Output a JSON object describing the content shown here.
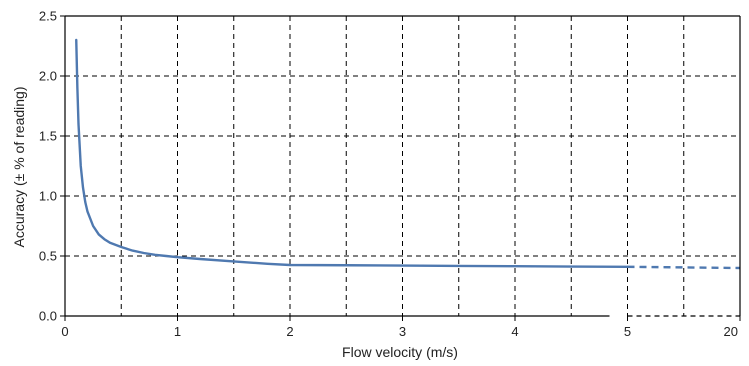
{
  "chart_data": {
    "type": "line",
    "title": "",
    "xlabel": "Flow velocity (m/s)",
    "ylabel": "Accuracy (± % of reading)",
    "ylim": [
      0,
      2.5
    ],
    "x_ticks": [
      "0",
      "1",
      "2",
      "3",
      "4",
      "5",
      "20"
    ],
    "y_ticks": [
      "0.0",
      "0.5",
      "1.0",
      "1.5",
      "2.0",
      "2.5"
    ],
    "grid": true,
    "x_scale_note": "axis is piecewise: 0–5 m/s linear, then a break, with the last major tick at 20 m/s",
    "series": [
      {
        "name": "",
        "color": "#4f79b0",
        "points": [
          [
            0.1,
            2.3
          ],
          [
            0.11,
            1.9
          ],
          [
            0.12,
            1.6
          ],
          [
            0.14,
            1.25
          ],
          [
            0.16,
            1.07
          ],
          [
            0.18,
            0.95
          ],
          [
            0.2,
            0.87
          ],
          [
            0.25,
            0.75
          ],
          [
            0.3,
            0.68
          ],
          [
            0.35,
            0.64
          ],
          [
            0.4,
            0.61
          ],
          [
            0.5,
            0.575
          ],
          [
            0.6,
            0.545
          ],
          [
            0.7,
            0.525
          ],
          [
            0.8,
            0.51
          ],
          [
            0.9,
            0.5
          ],
          [
            1.0,
            0.49
          ],
          [
            1.2,
            0.475
          ],
          [
            1.5,
            0.455
          ],
          [
            1.8,
            0.435
          ],
          [
            2.0,
            0.425
          ],
          [
            2.5,
            0.423
          ],
          [
            3.0,
            0.42
          ],
          [
            3.5,
            0.417
          ],
          [
            4.0,
            0.415
          ],
          [
            4.5,
            0.412
          ],
          [
            5.0,
            0.41
          ]
        ]
      }
    ],
    "dashed_continuation": {
      "color": "#4f79b0",
      "points": [
        [
          5.0,
          0.41
        ],
        [
          20.0,
          0.4
        ]
      ]
    }
  }
}
